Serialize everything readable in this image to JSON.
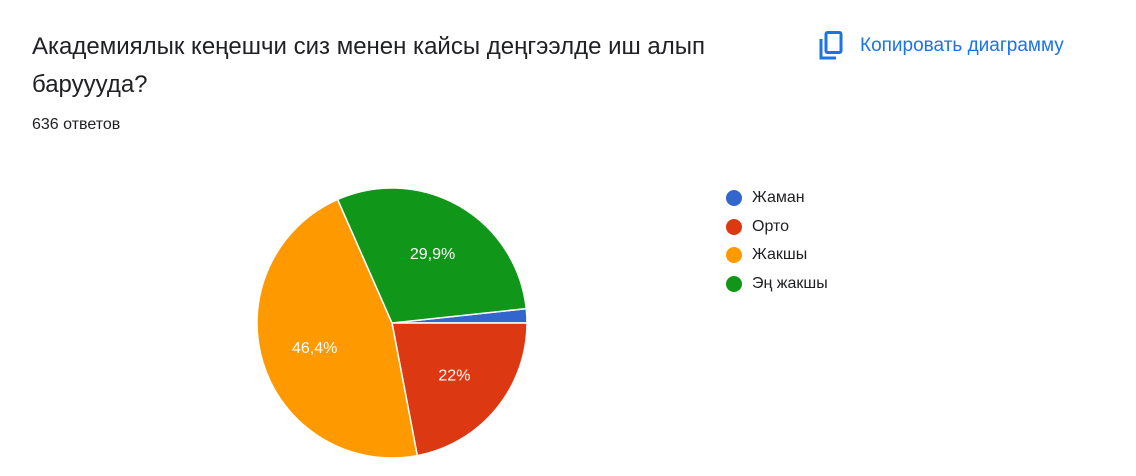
{
  "question": {
    "title": "Академиялык кеңешчи сиз менен кайсы деңгээлде иш алып баруууда?",
    "responses": "636 ответов"
  },
  "toolbar": {
    "copy_label": "Копировать диаграмму",
    "copy_icon": "copy-icon"
  },
  "chart_data": {
    "type": "pie",
    "title": "Академиялык кеңешчи сиз менен кайсы деңгээлде иш алып баруууда?",
    "categories": [
      "Жаман",
      "Орто",
      "Жакшы",
      "Эң жакшы"
    ],
    "values": [
      1.7,
      22,
      46.4,
      29.9
    ],
    "labels": [
      "",
      "22%",
      "46,4%",
      "29,9%"
    ],
    "colors": [
      "#3366cc",
      "#dc3912",
      "#ff9900",
      "#109618"
    ],
    "legend": "right"
  }
}
